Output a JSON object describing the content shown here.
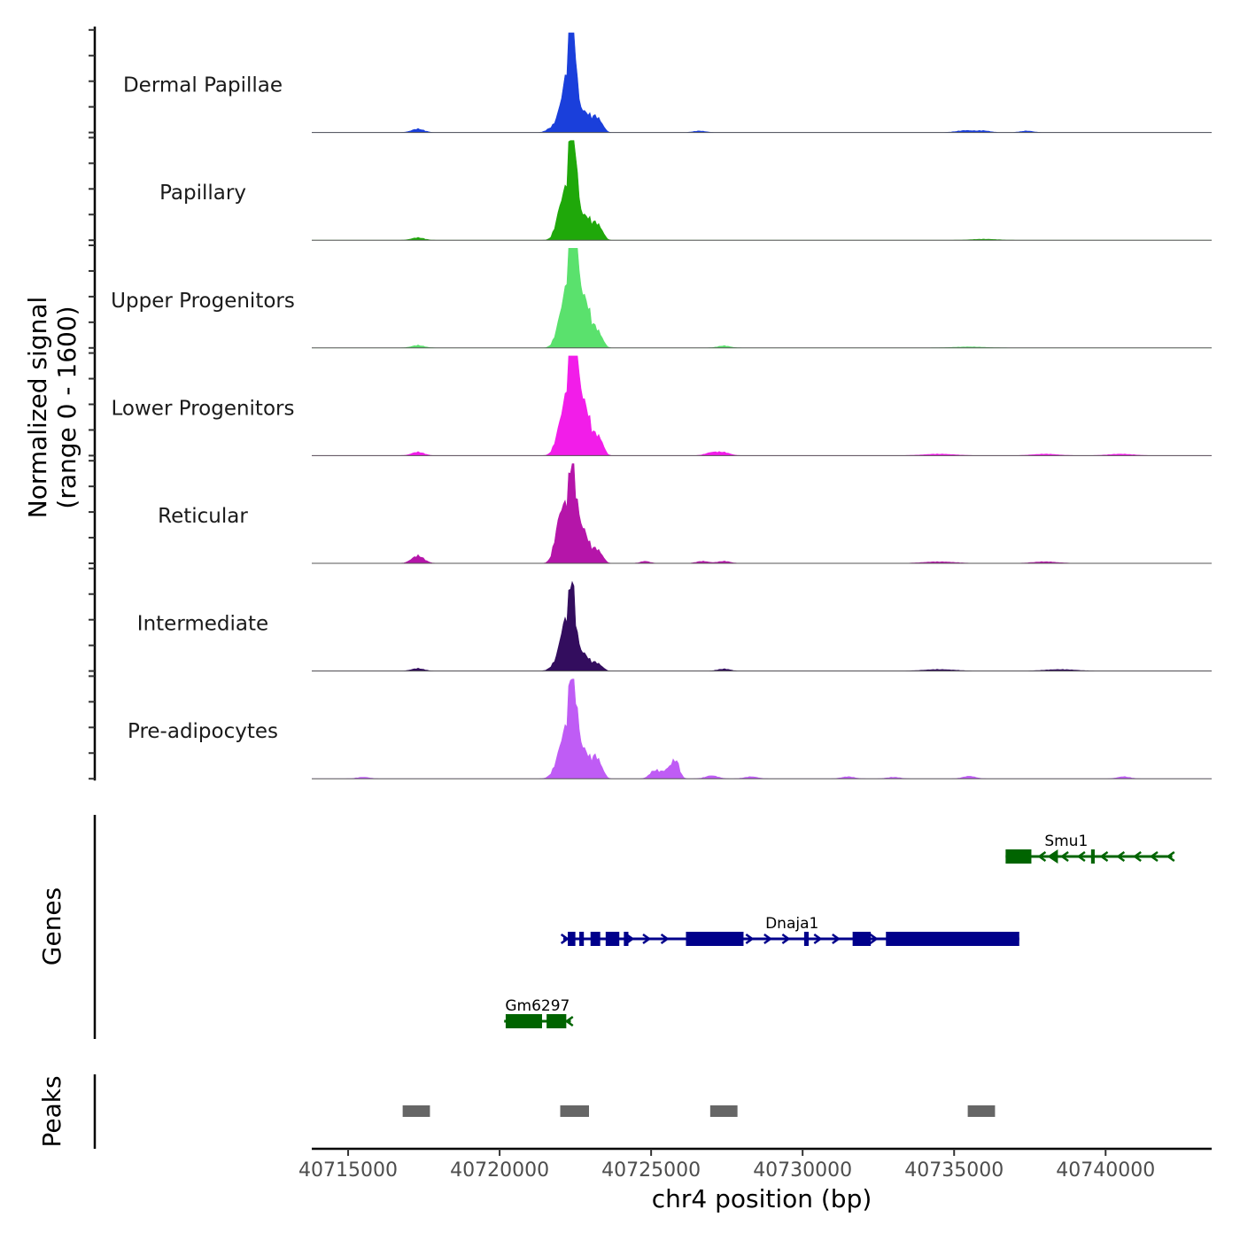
{
  "chart_data": {
    "type": "area",
    "title": "",
    "chromosome": "chr4",
    "xlabel": "chr4 position (bp)",
    "ylabel": "Normalized signal",
    "ylabel_range": "(range 0 - 1600)",
    "ylim": [
      0,
      1600
    ],
    "xlim": [
      40713800,
      40743500
    ],
    "x_ticks": [
      40715000,
      40720000,
      40725000,
      40730000,
      40735000,
      40740000
    ],
    "x_tick_labels": [
      "40715000",
      "40720000",
      "40725000",
      "40730000",
      "40735000",
      "40740000"
    ],
    "tracks": [
      {
        "name": "Dermal Papillae",
        "color": "#1a3fdb",
        "peaks": [
          [
            40717300,
            70,
            200
          ],
          [
            40721700,
            80,
            150
          ],
          [
            40722050,
            500,
            150
          ],
          [
            40722250,
            900,
            120
          ],
          [
            40722380,
            1500,
            80
          ],
          [
            40722480,
            1050,
            80
          ],
          [
            40722650,
            450,
            120
          ],
          [
            40722900,
            320,
            110
          ],
          [
            40723150,
            280,
            110
          ],
          [
            40723350,
            160,
            110
          ],
          [
            40726600,
            30,
            200
          ],
          [
            40735400,
            40,
            300
          ],
          [
            40736000,
            30,
            200
          ],
          [
            40737400,
            30,
            200
          ]
        ]
      },
      {
        "name": "Papillary",
        "color": "#1fa80a",
        "peaks": [
          [
            40717300,
            50,
            200
          ],
          [
            40721900,
            100,
            150
          ],
          [
            40722050,
            600,
            150
          ],
          [
            40722250,
            700,
            120
          ],
          [
            40722380,
            1650,
            80
          ],
          [
            40722480,
            1250,
            90
          ],
          [
            40722650,
            500,
            120
          ],
          [
            40722900,
            400,
            110
          ],
          [
            40723150,
            300,
            110
          ],
          [
            40723350,
            180,
            110
          ],
          [
            40736000,
            20,
            400
          ]
        ]
      },
      {
        "name": "Upper Progenitors",
        "color": "#5ae16d",
        "peaks": [
          [
            40717300,
            50,
            200
          ],
          [
            40721900,
            150,
            150
          ],
          [
            40722100,
            700,
            150
          ],
          [
            40722300,
            900,
            120
          ],
          [
            40722380,
            1800,
            80
          ],
          [
            40722520,
            1350,
            90
          ],
          [
            40722680,
            900,
            120
          ],
          [
            40722900,
            700,
            110
          ],
          [
            40723150,
            350,
            110
          ],
          [
            40723350,
            180,
            110
          ],
          [
            40727400,
            40,
            200
          ],
          [
            40735500,
            20,
            500
          ]
        ]
      },
      {
        "name": "Lower Progenitors",
        "color": "#f21de9",
        "peaks": [
          [
            40717300,
            70,
            200
          ],
          [
            40721900,
            180,
            150
          ],
          [
            40722100,
            700,
            150
          ],
          [
            40722300,
            900,
            120
          ],
          [
            40722380,
            1800,
            80
          ],
          [
            40722520,
            1350,
            90
          ],
          [
            40722680,
            1000,
            120
          ],
          [
            40722900,
            700,
            110
          ],
          [
            40723150,
            350,
            110
          ],
          [
            40723350,
            250,
            110
          ],
          [
            40727000,
            60,
            200
          ],
          [
            40727400,
            60,
            200
          ],
          [
            40734500,
            30,
            500
          ],
          [
            40738000,
            30,
            400
          ],
          [
            40740500,
            30,
            400
          ]
        ]
      },
      {
        "name": "Reticular",
        "color": "#b515a9",
        "peaks": [
          [
            40717300,
            150,
            200
          ],
          [
            40721900,
            300,
            150
          ],
          [
            40722050,
            750,
            150
          ],
          [
            40722250,
            700,
            120
          ],
          [
            40722380,
            1380,
            80
          ],
          [
            40722520,
            900,
            90
          ],
          [
            40722700,
            600,
            120
          ],
          [
            40722900,
            350,
            110
          ],
          [
            40723150,
            250,
            110
          ],
          [
            40723350,
            150,
            110
          ],
          [
            40724800,
            40,
            150
          ],
          [
            40726700,
            40,
            200
          ],
          [
            40727400,
            40,
            200
          ],
          [
            40734500,
            30,
            500
          ],
          [
            40738000,
            30,
            400
          ]
        ]
      },
      {
        "name": "Intermediate",
        "color": "#330d5e",
        "peaks": [
          [
            40717300,
            50,
            200
          ],
          [
            40721800,
            100,
            150
          ],
          [
            40722100,
            700,
            150
          ],
          [
            40722250,
            450,
            120
          ],
          [
            40722380,
            1360,
            80
          ],
          [
            40722520,
            550,
            90
          ],
          [
            40722700,
            300,
            120
          ],
          [
            40722900,
            200,
            110
          ],
          [
            40723150,
            150,
            110
          ],
          [
            40723350,
            80,
            110
          ],
          [
            40727400,
            40,
            200
          ],
          [
            40734500,
            30,
            500
          ],
          [
            40738500,
            30,
            500
          ]
        ]
      },
      {
        "name": "Pre-adipocytes",
        "color": "#bf5cf5",
        "peaks": [
          [
            40715500,
            30,
            200
          ],
          [
            40721800,
            100,
            150
          ],
          [
            40722050,
            600,
            150
          ],
          [
            40722250,
            700,
            120
          ],
          [
            40722380,
            1600,
            80
          ],
          [
            40722520,
            1100,
            90
          ],
          [
            40722700,
            500,
            120
          ],
          [
            40722900,
            350,
            110
          ],
          [
            40723150,
            400,
            110
          ],
          [
            40723350,
            200,
            110
          ],
          [
            40725100,
            150,
            150
          ],
          [
            40725400,
            100,
            150
          ],
          [
            40725700,
            250,
            150
          ],
          [
            40725850,
            200,
            100
          ],
          [
            40727000,
            60,
            200
          ],
          [
            40728300,
            40,
            200
          ],
          [
            40731500,
            40,
            200
          ],
          [
            40733000,
            30,
            200
          ],
          [
            40735500,
            50,
            200
          ],
          [
            40740600,
            40,
            200
          ]
        ]
      }
    ],
    "genes_title": "Genes",
    "genes": [
      {
        "name": "Smu1",
        "strand": "-",
        "color": "#006400",
        "start": 40736700,
        "end": 40742200,
        "row": 0,
        "exons": [
          [
            40736700,
            40737550
          ],
          [
            40739520,
            40739640
          ]
        ],
        "arrows": [
          40737900,
          40738650,
          40739200,
          40739950,
          40740500,
          40741050,
          40741600,
          40742150
        ],
        "arrow_heads_large": [
          40738250
        ]
      },
      {
        "name": "Dnaja1",
        "strand": "+",
        "color": "#00008b",
        "start": 40722100,
        "end": 40737150,
        "row": 1,
        "exons": [
          [
            40722250,
            40722500
          ],
          [
            40722630,
            40722780
          ],
          [
            40723000,
            40723320
          ],
          [
            40723500,
            40723950
          ],
          [
            40724100,
            40724250
          ],
          [
            40726150,
            40728050
          ],
          [
            40730050,
            40730200
          ],
          [
            40731650,
            40732250
          ],
          [
            40732750,
            40737150
          ]
        ],
        "arrows": [
          40722150,
          40724300,
          40724850,
          40725450,
          40728250,
          40728850,
          40729450,
          40730500,
          40731100,
          40732350
        ]
      },
      {
        "name": "Gm6297",
        "strand": "-",
        "color": "#006400",
        "start": 40720150,
        "end": 40722350,
        "row": 2,
        "exons": [
          [
            40720200,
            40721400
          ],
          [
            40721550,
            40722200
          ]
        ],
        "arrows": [
          40722300
        ]
      }
    ],
    "peaks_title": "Peaks",
    "peaks": [
      [
        40716800,
        40717700
      ],
      [
        40722000,
        40722950
      ],
      [
        40726950,
        40727850
      ],
      [
        40735450,
        40736350
      ]
    ]
  }
}
